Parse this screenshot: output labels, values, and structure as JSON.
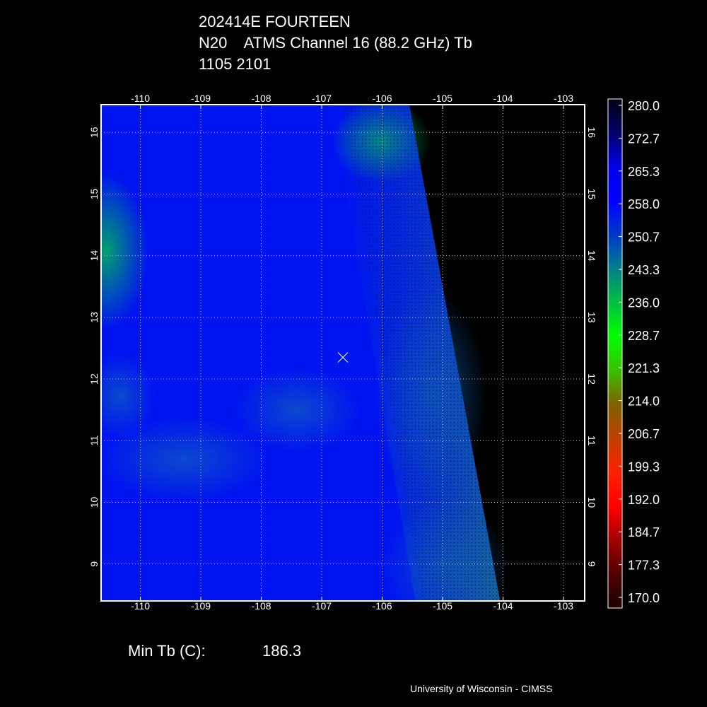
{
  "header": {
    "storm": "202414E FOURTEEN",
    "sensor_line": "N20    ATMS Channel 16 (88.2 GHz) Tb",
    "datetime": "1105 2101"
  },
  "footer": {
    "min_label": "Min Tb (C):",
    "min_value": "186.3",
    "credit": "University of Wisconsin - CIMSS"
  },
  "map": {
    "lon_ticks": [
      "-110",
      "-109",
      "-108",
      "-107",
      "-106",
      "-105",
      "-104",
      "-103"
    ],
    "lat_ticks": [
      "9",
      "10",
      "11",
      "12",
      "13",
      "14",
      "15",
      "16"
    ],
    "lon_range": [
      -110.65,
      -102.65
    ],
    "lat_range": [
      8.4,
      16.45
    ],
    "storm_center": {
      "lon": -106.65,
      "lat": 12.35
    },
    "swath_edge": {
      "top_lon": -105.55,
      "bottom_lon": -104.05
    }
  },
  "colorbar": {
    "labels": [
      "280.0",
      "272.7",
      "265.3",
      "258.0",
      "250.7",
      "243.3",
      "236.0",
      "228.7",
      "221.3",
      "214.0",
      "206.7",
      "199.3",
      "192.0",
      "184.7",
      "177.3",
      "170.0"
    ],
    "colors": [
      "#000010",
      "#00006a",
      "#0000e8",
      "#0000ff",
      "#0038c8",
      "#00808a",
      "#00c040",
      "#00ff00",
      "#38c000",
      "#806000",
      "#c04000",
      "#ff2000",
      "#ff0000",
      "#a00000",
      "#500000",
      "#200000"
    ]
  }
}
